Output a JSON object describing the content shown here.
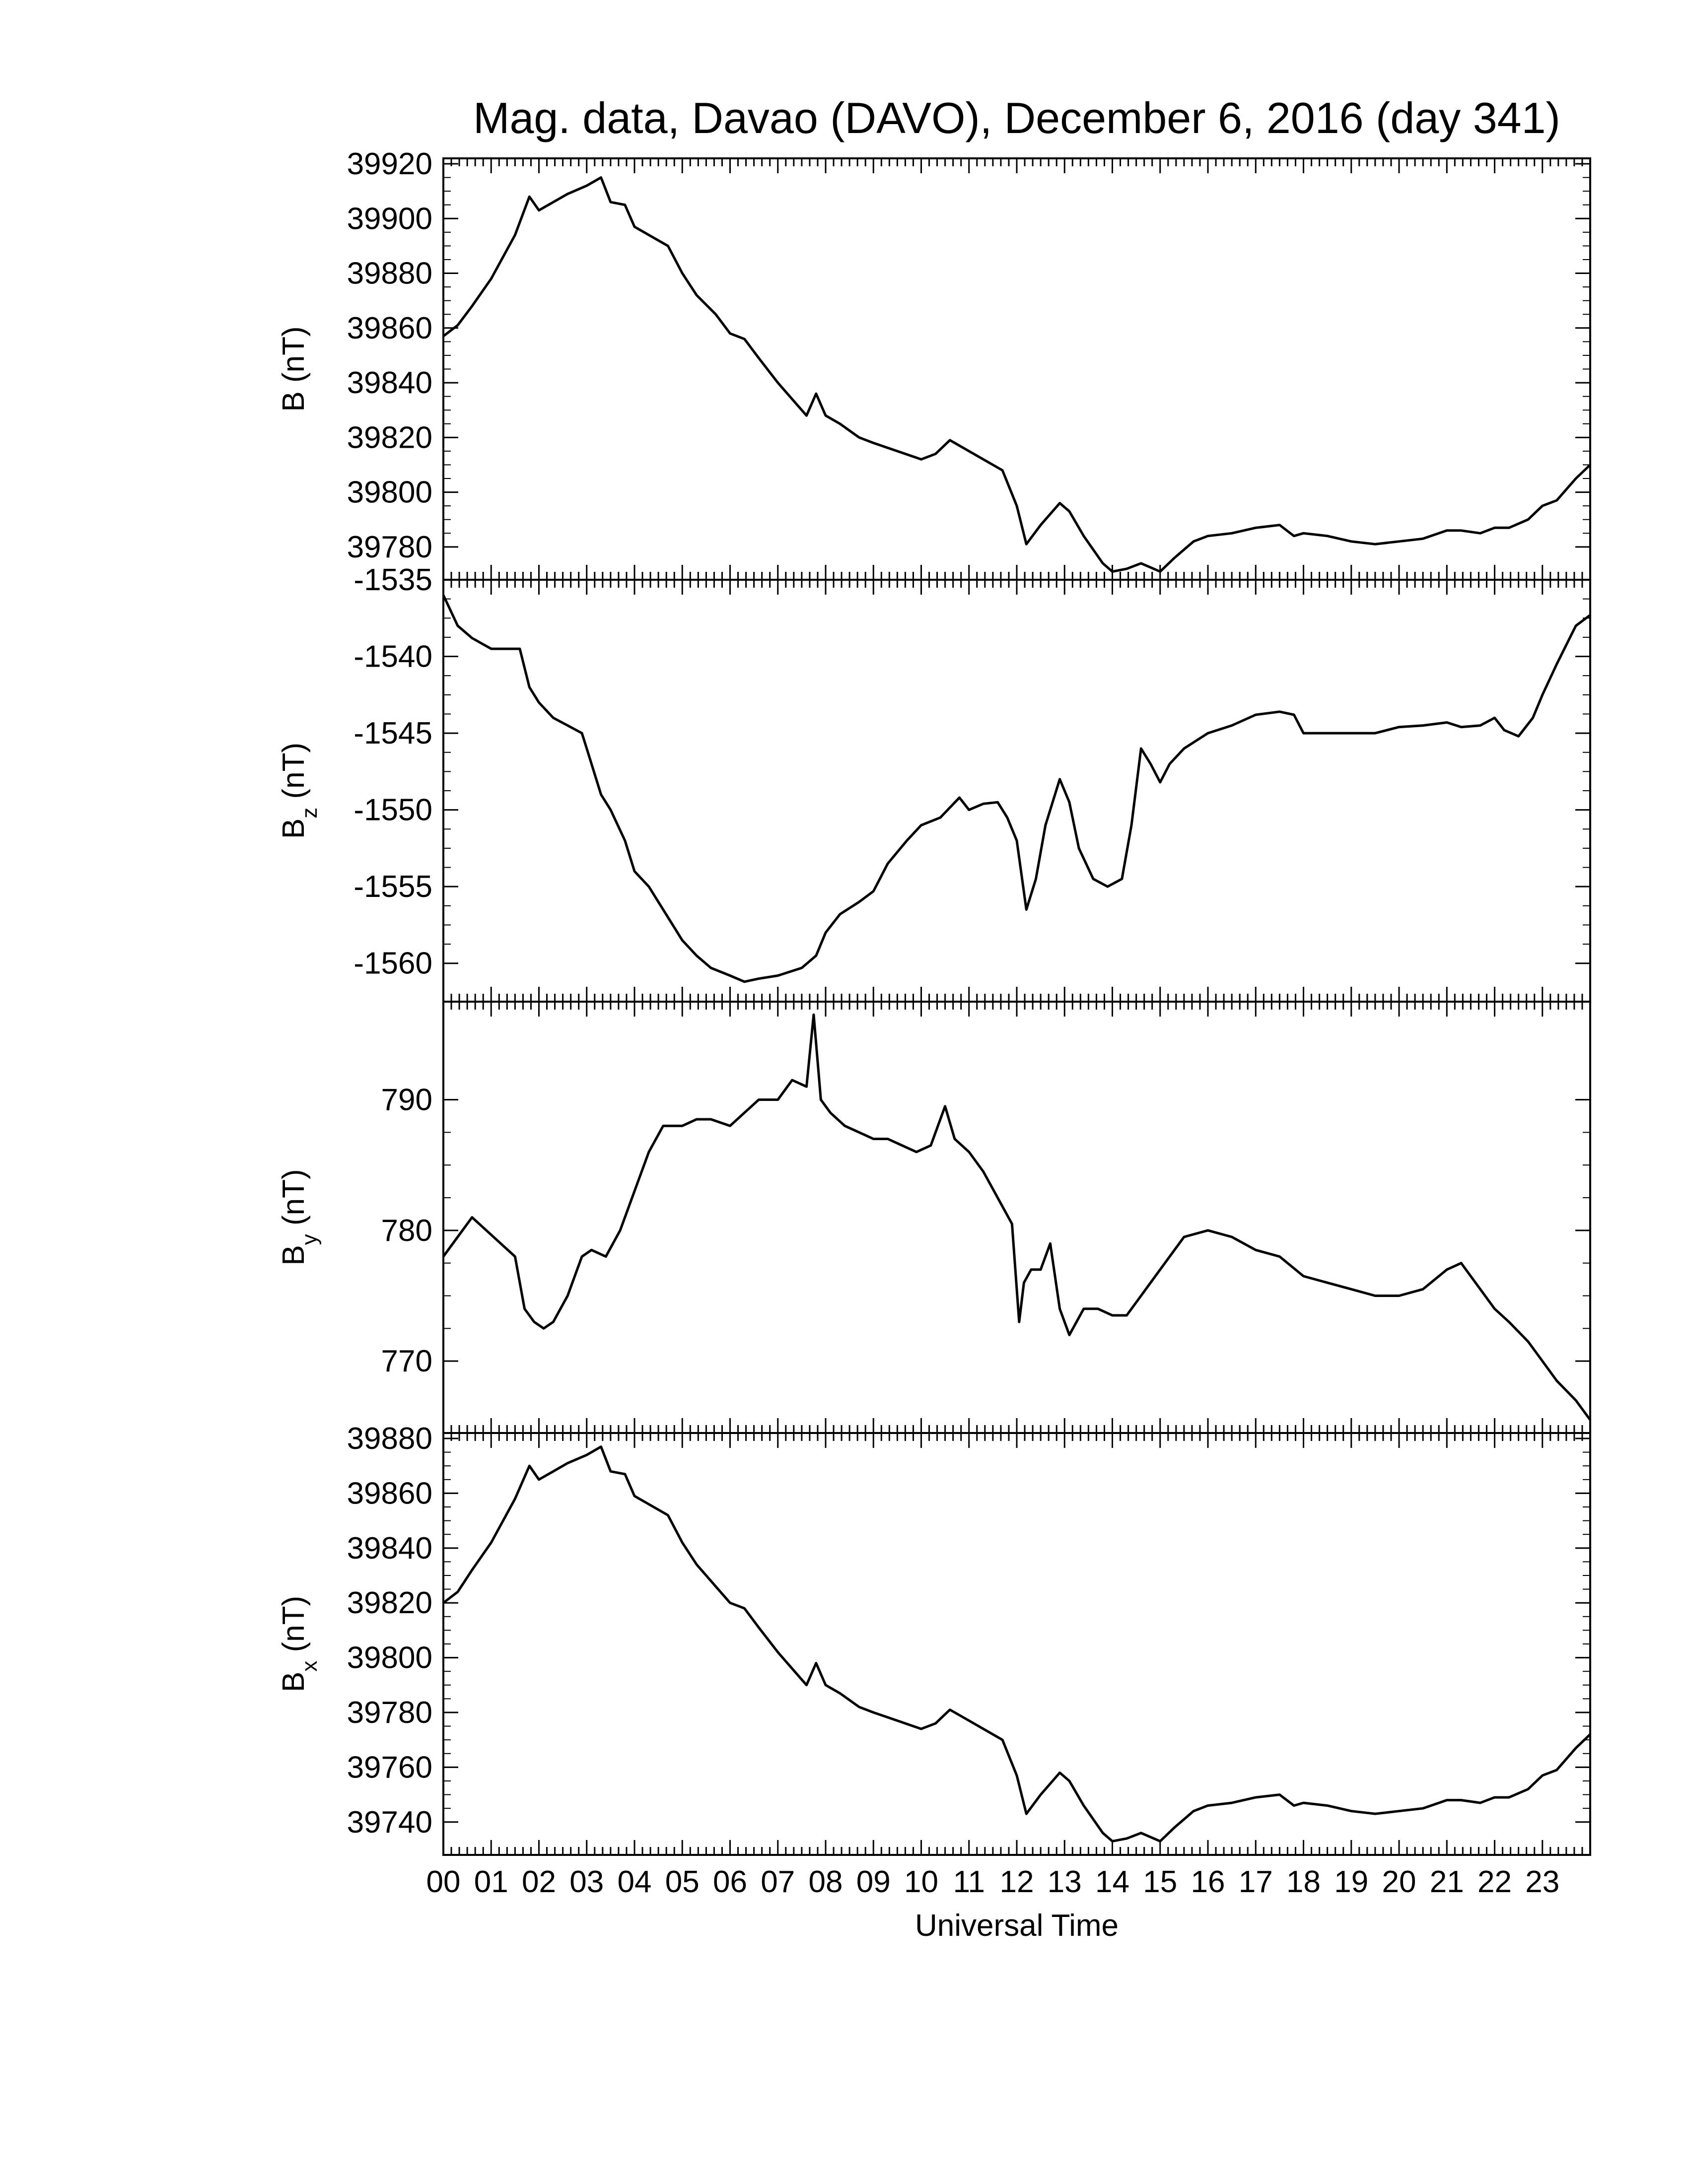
{
  "title": "Mag. data, Davao (DAVO), December 6, 2016 (day 341)",
  "xlabel": "Universal Time",
  "line_color": "#000000",
  "chart_data": [
    {
      "type": "line",
      "name": "B",
      "ylabel_main": "B (nT)",
      "ylabel_sub": "",
      "ylabel_tail": "",
      "ylim": [
        39768,
        39922
      ],
      "yticks": [
        39780,
        39800,
        39820,
        39840,
        39860,
        39880,
        39900,
        39920
      ],
      "x": [
        0,
        0.3,
        0.6,
        1.0,
        1.5,
        1.8,
        2.0,
        2.3,
        2.6,
        3.0,
        3.3,
        3.5,
        3.8,
        4.0,
        4.3,
        4.7,
        5.0,
        5.3,
        5.7,
        6.0,
        6.3,
        6.6,
        7.0,
        7.3,
        7.6,
        7.8,
        8.0,
        8.3,
        8.7,
        9.0,
        9.5,
        10.0,
        10.3,
        10.6,
        11.0,
        11.3,
        11.7,
        12.0,
        12.2,
        12.5,
        12.9,
        13.1,
        13.4,
        13.8,
        14.0,
        14.3,
        14.6,
        15.0,
        15.3,
        15.7,
        16.0,
        16.5,
        17.0,
        17.5,
        17.8,
        18.0,
        18.5,
        19.0,
        19.5,
        20.0,
        20.5,
        21.0,
        21.3,
        21.7,
        22.0,
        22.3,
        22.7,
        23.0,
        23.3,
        23.7,
        24.0
      ],
      "y": [
        39857,
        39861,
        39868,
        39878,
        39894,
        39908,
        39903,
        39906,
        39909,
        39912,
        39915,
        39906,
        39905,
        39897,
        39894,
        39890,
        39880,
        39872,
        39865,
        39858,
        39856,
        39849,
        39840,
        39834,
        39828,
        39836,
        39828,
        39825,
        39820,
        39818,
        39815,
        39812,
        39814,
        39819,
        39815,
        39812,
        39808,
        39795,
        39781,
        39788,
        39796,
        39793,
        39784,
        39774,
        39771,
        39772,
        39774,
        39771,
        39776,
        39782,
        39784,
        39785,
        39787,
        39788,
        39784,
        39785,
        39784,
        39782,
        39781,
        39782,
        39783,
        39786,
        39786,
        39785,
        39787,
        39787,
        39790,
        39795,
        39797,
        39805,
        39810
      ]
    },
    {
      "type": "line",
      "name": "Bz",
      "ylabel_main": "B",
      "ylabel_sub": "z",
      "ylabel_tail": " (nT)",
      "ylim": [
        -1562.5,
        -1535.0
      ],
      "yticks": [
        -1535,
        -1540,
        -1545,
        -1550,
        -1555,
        -1560
      ],
      "x": [
        0,
        0.3,
        0.6,
        1.0,
        1.3,
        1.6,
        1.8,
        2.0,
        2.3,
        2.6,
        2.9,
        3.0,
        3.3,
        3.5,
        3.8,
        4.0,
        4.3,
        4.7,
        5.0,
        5.3,
        5.6,
        6.0,
        6.3,
        6.6,
        7.0,
        7.5,
        7.8,
        8.0,
        8.3,
        8.7,
        9.0,
        9.3,
        9.7,
        10.0,
        10.4,
        10.8,
        11.0,
        11.3,
        11.6,
        11.8,
        12.0,
        12.2,
        12.4,
        12.6,
        12.9,
        13.1,
        13.3,
        13.6,
        13.9,
        14.2,
        14.4,
        14.6,
        14.8,
        15.0,
        15.2,
        15.5,
        16.0,
        16.5,
        17.0,
        17.5,
        17.8,
        18.0,
        18.5,
        19.0,
        19.5,
        20.0,
        20.5,
        21.0,
        21.3,
        21.7,
        22.0,
        22.2,
        22.5,
        22.8,
        23.0,
        23.3,
        23.7,
        24.0
      ],
      "y": [
        -1536.0,
        -1538.0,
        -1538.8,
        -1539.5,
        -1539.5,
        -1539.5,
        -1542.0,
        -1543.0,
        -1544.0,
        -1544.5,
        -1545.0,
        -1546.0,
        -1549.0,
        -1550.0,
        -1552.0,
        -1554.0,
        -1555.0,
        -1557.0,
        -1558.5,
        -1559.5,
        -1560.3,
        -1560.8,
        -1561.2,
        -1561.0,
        -1560.8,
        -1560.3,
        -1559.5,
        -1558.0,
        -1556.8,
        -1556.0,
        -1555.3,
        -1553.5,
        -1552.0,
        -1551.0,
        -1550.5,
        -1549.2,
        -1550.0,
        -1549.6,
        -1549.5,
        -1550.5,
        -1552.0,
        -1556.5,
        -1554.5,
        -1551.0,
        -1548.0,
        -1549.5,
        -1552.5,
        -1554.5,
        -1555.0,
        -1554.5,
        -1551.0,
        -1546.0,
        -1547.0,
        -1548.2,
        -1547.0,
        -1546.0,
        -1545.0,
        -1544.5,
        -1543.8,
        -1543.6,
        -1543.8,
        -1545.0,
        -1545.0,
        -1545.0,
        -1545.0,
        -1544.6,
        -1544.5,
        -1544.3,
        -1544.6,
        -1544.5,
        -1544.0,
        -1544.8,
        -1545.2,
        -1544.0,
        -1542.5,
        -1540.5,
        -1538.0,
        -1537.3
      ]
    },
    {
      "type": "line",
      "name": "By",
      "ylabel_main": "B",
      "ylabel_sub": "y",
      "ylabel_tail": " (nT)",
      "ylim": [
        764.5,
        797.5
      ],
      "yticks": [
        770,
        780,
        790
      ],
      "x": [
        0,
        0.3,
        0.6,
        0.9,
        1.2,
        1.5,
        1.7,
        1.9,
        2.1,
        2.3,
        2.6,
        2.9,
        3.1,
        3.4,
        3.7,
        4.0,
        4.3,
        4.6,
        5.0,
        5.3,
        5.6,
        6.0,
        6.3,
        6.6,
        7.0,
        7.3,
        7.6,
        7.75,
        7.9,
        8.1,
        8.4,
        8.7,
        9.0,
        9.3,
        9.6,
        9.9,
        10.2,
        10.5,
        10.7,
        11.0,
        11.3,
        11.6,
        11.9,
        12.05,
        12.15,
        12.3,
        12.5,
        12.7,
        12.9,
        13.1,
        13.4,
        13.7,
        14.0,
        14.3,
        14.6,
        14.9,
        15.2,
        15.5,
        16.0,
        16.5,
        17.0,
        17.5,
        18.0,
        18.5,
        19.0,
        19.5,
        20.0,
        20.5,
        21.0,
        21.3,
        21.6,
        22.0,
        22.3,
        22.7,
        23.0,
        23.3,
        23.7,
        24.0
      ],
      "y": [
        778.0,
        779.5,
        781.0,
        780.0,
        779.0,
        778.0,
        774.0,
        773.0,
        772.5,
        773.0,
        775.0,
        778.0,
        778.5,
        778.0,
        780.0,
        783.0,
        786.0,
        788.0,
        788.0,
        788.5,
        788.5,
        788.0,
        789.0,
        790.0,
        790.0,
        791.5,
        791.0,
        796.5,
        790.0,
        789.0,
        788.0,
        787.5,
        787.0,
        787.0,
        786.5,
        786.0,
        786.5,
        789.5,
        787.0,
        786.0,
        784.5,
        782.5,
        780.5,
        773.0,
        776.0,
        777.0,
        777.0,
        779.0,
        774.0,
        772.0,
        774.0,
        774.0,
        773.5,
        773.5,
        775.0,
        776.5,
        778.0,
        779.5,
        780.0,
        779.5,
        778.5,
        778.0,
        776.5,
        776.0,
        775.5,
        775.0,
        775.0,
        775.5,
        777.0,
        777.5,
        776.0,
        774.0,
        773.0,
        771.5,
        770.0,
        768.5,
        767.0,
        765.5
      ]
    },
    {
      "type": "line",
      "name": "Bx",
      "ylabel_main": "B",
      "ylabel_sub": "x",
      "ylabel_tail": " (nT)",
      "ylim": [
        39728,
        39882
      ],
      "yticks": [
        39740,
        39760,
        39780,
        39800,
        39820,
        39840,
        39860,
        39880
      ],
      "x": [
        0,
        0.3,
        0.6,
        1.0,
        1.5,
        1.8,
        2.0,
        2.3,
        2.6,
        3.0,
        3.3,
        3.5,
        3.8,
        4.0,
        4.3,
        4.7,
        5.0,
        5.3,
        5.7,
        6.0,
        6.3,
        6.6,
        7.0,
        7.3,
        7.6,
        7.8,
        8.0,
        8.3,
        8.7,
        9.0,
        9.5,
        10.0,
        10.3,
        10.6,
        11.0,
        11.3,
        11.7,
        12.0,
        12.2,
        12.5,
        12.9,
        13.1,
        13.4,
        13.8,
        14.0,
        14.3,
        14.6,
        15.0,
        15.3,
        15.7,
        16.0,
        16.5,
        17.0,
        17.5,
        17.8,
        18.0,
        18.5,
        19.0,
        19.5,
        20.0,
        20.5,
        21.0,
        21.3,
        21.7,
        22.0,
        22.3,
        22.7,
        23.0,
        23.3,
        23.7,
        24.0
      ],
      "y": [
        39820,
        39824,
        39832,
        39842,
        39858,
        39870,
        39865,
        39868,
        39871,
        39874,
        39877,
        39868,
        39867,
        39859,
        39856,
        39852,
        39842,
        39834,
        39826,
        39820,
        39818,
        39811,
        39802,
        39796,
        39790,
        39798,
        39790,
        39787,
        39782,
        39780,
        39777,
        39774,
        39776,
        39781,
        39777,
        39774,
        39770,
        39757,
        39743,
        39750,
        39758,
        39755,
        39746,
        39736,
        39733,
        39734,
        39736,
        39733,
        39738,
        39744,
        39746,
        39747,
        39749,
        39750,
        39746,
        39747,
        39746,
        39744,
        39743,
        39744,
        39745,
        39748,
        39748,
        39747,
        39749,
        39749,
        39752,
        39757,
        39759,
        39767,
        39772
      ]
    }
  ],
  "xticks": [
    "00",
    "01",
    "02",
    "03",
    "04",
    "05",
    "06",
    "07",
    "08",
    "09",
    "10",
    "11",
    "12",
    "13",
    "14",
    "15",
    "16",
    "17",
    "18",
    "19",
    "20",
    "21",
    "22",
    "23"
  ]
}
